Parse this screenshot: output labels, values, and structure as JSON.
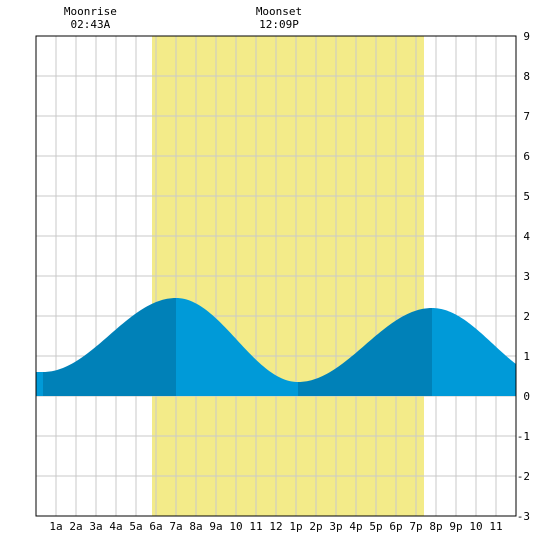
{
  "chart_data": {
    "type": "area",
    "title": "",
    "xlabel": "",
    "ylabel": "",
    "x_tick_labels": [
      "1a",
      "2a",
      "3a",
      "4a",
      "5a",
      "6a",
      "7a",
      "8a",
      "9a",
      "10",
      "11",
      "12",
      "1p",
      "2p",
      "3p",
      "4p",
      "5p",
      "6p",
      "7p",
      "8p",
      "9p",
      "10",
      "11"
    ],
    "xlim": [
      0,
      24
    ],
    "ylim": [
      -3,
      9
    ],
    "y_tick_labels": [
      "9",
      "8",
      "7",
      "6",
      "5",
      "4",
      "3",
      "2",
      "1",
      "0",
      "-1",
      "-2",
      "-3"
    ],
    "grid": true,
    "daylight": {
      "start_hour": 5.8,
      "end_hour": 19.4
    },
    "moon_events": [
      {
        "label": "Moonrise",
        "time": "02:43A",
        "hour": 2.72
      },
      {
        "label": "Moonset",
        "time": "12:09P",
        "hour": 12.15
      }
    ],
    "tide_extremes": [
      {
        "type": "low",
        "hour": 0.35,
        "height": 0.6
      },
      {
        "type": "high",
        "hour": 7.0,
        "height": 2.45
      },
      {
        "type": "low",
        "hour": 13.1,
        "height": 0.35
      },
      {
        "type": "high",
        "hour": 19.8,
        "height": 2.2
      },
      {
        "type": "low",
        "hour": 25.9,
        "height": 0.4
      }
    ],
    "series": [
      {
        "values_hourly": [
          0.6,
          0.62,
          0.76,
          1.02,
          1.33,
          1.72,
          2.12,
          2.45,
          2.32,
          1.9,
          1.4,
          0.9,
          0.52,
          0.35,
          0.45,
          0.72,
          1.1,
          1.5,
          1.88,
          2.14,
          2.2,
          1.98,
          1.6,
          1.15,
          0.8
        ]
      }
    ],
    "colors": {
      "daylight": "#f3eb89",
      "tide_dark": "#0081b8",
      "tide_light": "#009ad8",
      "grid": "#c9c9c9",
      "frame": "#000000"
    }
  }
}
